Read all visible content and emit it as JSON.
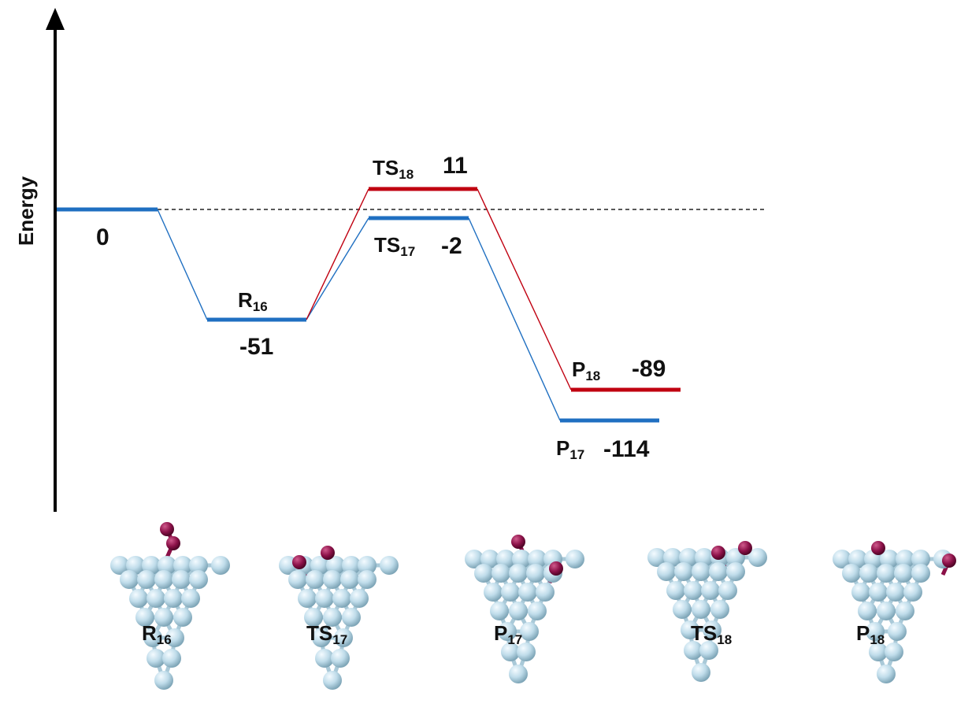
{
  "y_axis_label": "Energy",
  "colors": {
    "blue": "#1f6fc1",
    "red": "#c00010",
    "atom_light": "#c8e4f1",
    "atom_dark": "#8b1148"
  },
  "levels": [
    {
      "id": "start",
      "series": "blue",
      "energy": 0,
      "name_main": "",
      "name_sub": "",
      "value_text": "0"
    },
    {
      "id": "r16",
      "series": "blue",
      "energy": -51,
      "name_main": "R",
      "name_sub": "16",
      "value_text": "-51"
    },
    {
      "id": "ts18",
      "series": "red",
      "energy": 11,
      "name_main": "TS",
      "name_sub": "18",
      "value_text": "11"
    },
    {
      "id": "ts17",
      "series": "blue",
      "energy": -2,
      "name_main": "TS",
      "name_sub": "17",
      "value_text": "-2"
    },
    {
      "id": "p18",
      "series": "red",
      "energy": -89,
      "name_main": "P",
      "name_sub": "18",
      "value_text": "-89"
    },
    {
      "id": "p17",
      "series": "blue",
      "energy": -114,
      "name_main": "P",
      "name_sub": "17",
      "value_text": "-114"
    }
  ],
  "structures": [
    {
      "id": "r16",
      "name_main": "R",
      "name_sub": "16"
    },
    {
      "id": "ts17",
      "name_main": "TS",
      "name_sub": "17"
    },
    {
      "id": "p17",
      "name_main": "P",
      "name_sub": "17"
    },
    {
      "id": "ts18",
      "name_main": "TS",
      "name_sub": "18"
    },
    {
      "id": "p18",
      "name_main": "P",
      "name_sub": "18"
    }
  ]
}
